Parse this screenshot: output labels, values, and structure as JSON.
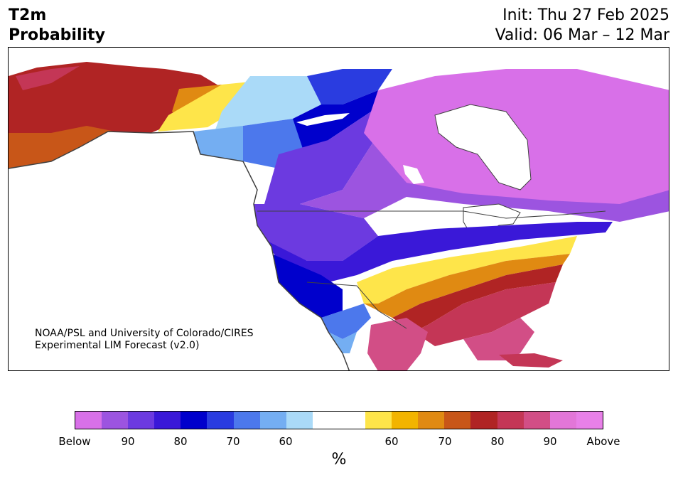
{
  "title": {
    "line1": "T2m",
    "line2": "Probability"
  },
  "header_right": {
    "init": "Init: Thu 27 Feb 2025",
    "valid": "Valid: 06 Mar – 12 Mar"
  },
  "credit": {
    "line1": "NOAA/PSL and University of Colorado/CIRES",
    "line2": "Experimental LIM Forecast (v2.0)"
  },
  "colorbar": {
    "colors": [
      "#d870e8",
      "#9c54e0",
      "#6c3ae0",
      "#3a18d8",
      "#0000cc",
      "#2a3ce0",
      "#4c78ec",
      "#74aef2",
      "#aadaf8",
      "#ffffff",
      "#ffffff",
      "#fee54a",
      "#f2b400",
      "#e08a12",
      "#c85618",
      "#b02424",
      "#c43656",
      "#d24e86",
      "#e276d8",
      "#e880e8"
    ],
    "tick_labels": [
      "Below",
      "90",
      "80",
      "70",
      "60",
      "60",
      "70",
      "80",
      "90",
      "Above"
    ],
    "units": "%"
  },
  "map": {
    "land_color": "#ffffff",
    "coast_color": "#404040"
  }
}
